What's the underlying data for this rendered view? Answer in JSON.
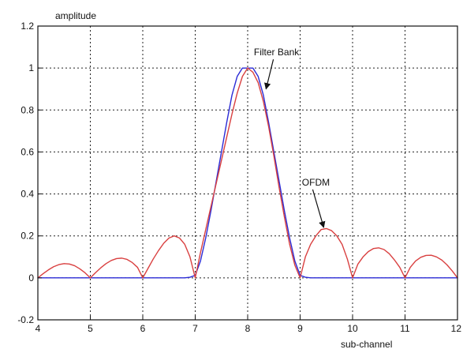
{
  "chart_data": {
    "type": "line",
    "xlabel": "sub-channel",
    "ylabel": "amplitude",
    "xlim": [
      4,
      12
    ],
    "ylim": [
      -0.2,
      1.2
    ],
    "xticks": [
      4,
      5,
      6,
      7,
      8,
      9,
      10,
      11,
      12
    ],
    "yticks": [
      -0.2,
      0,
      0.2,
      0.4,
      0.6,
      0.8,
      1,
      1.2
    ],
    "ytick_labels": [
      "-0.2",
      "0",
      "0.2",
      "0.4",
      "0.6",
      "0.8",
      "1",
      "1.2"
    ],
    "grid": true,
    "series": [
      {
        "name": "Filter Bank",
        "color": "#2b2bd6",
        "points": [
          [
            4.0,
            0.0
          ],
          [
            6.8,
            0.0
          ],
          [
            6.9,
            0.003
          ],
          [
            7.0,
            0.012
          ],
          [
            7.1,
            0.08
          ],
          [
            7.2,
            0.19
          ],
          [
            7.3,
            0.32
          ],
          [
            7.4,
            0.46
          ],
          [
            7.5,
            0.6
          ],
          [
            7.6,
            0.74
          ],
          [
            7.7,
            0.87
          ],
          [
            7.8,
            0.96
          ],
          [
            7.9,
            1.0
          ],
          [
            8.0,
            1.0
          ],
          [
            8.1,
            1.0
          ],
          [
            8.2,
            0.96
          ],
          [
            8.3,
            0.87
          ],
          [
            8.4,
            0.74
          ],
          [
            8.5,
            0.6
          ],
          [
            8.6,
            0.46
          ],
          [
            8.7,
            0.32
          ],
          [
            8.8,
            0.19
          ],
          [
            8.9,
            0.08
          ],
          [
            9.0,
            0.012
          ],
          [
            9.1,
            0.003
          ],
          [
            9.2,
            0.0
          ],
          [
            12.0,
            0.0
          ]
        ]
      },
      {
        "name": "OFDM",
        "color": "#d94040",
        "points": [
          [
            4.0,
            0.0
          ],
          [
            4.1,
            0.02
          ],
          [
            4.2,
            0.038
          ],
          [
            4.3,
            0.053
          ],
          [
            4.4,
            0.063
          ],
          [
            4.5,
            0.068
          ],
          [
            4.6,
            0.066
          ],
          [
            4.7,
            0.058
          ],
          [
            4.8,
            0.043
          ],
          [
            4.9,
            0.024
          ],
          [
            5.0,
            0.0
          ],
          [
            5.1,
            0.025
          ],
          [
            5.2,
            0.048
          ],
          [
            5.3,
            0.068
          ],
          [
            5.4,
            0.083
          ],
          [
            5.5,
            0.092
          ],
          [
            5.6,
            0.094
          ],
          [
            5.7,
            0.088
          ],
          [
            5.8,
            0.073
          ],
          [
            5.9,
            0.05
          ],
          [
            6.0,
            0.0
          ],
          [
            6.1,
            0.045
          ],
          [
            6.2,
            0.09
          ],
          [
            6.3,
            0.13
          ],
          [
            6.4,
            0.165
          ],
          [
            6.5,
            0.19
          ],
          [
            6.6,
            0.2
          ],
          [
            6.7,
            0.19
          ],
          [
            6.8,
            0.16
          ],
          [
            6.9,
            0.1
          ],
          [
            7.0,
            0.0
          ],
          [
            7.1,
            0.12
          ],
          [
            7.2,
            0.23
          ],
          [
            7.3,
            0.34
          ],
          [
            7.4,
            0.45
          ],
          [
            7.5,
            0.56
          ],
          [
            7.6,
            0.67
          ],
          [
            7.7,
            0.78
          ],
          [
            7.8,
            0.88
          ],
          [
            7.9,
            0.96
          ],
          [
            8.0,
            1.0
          ],
          [
            8.1,
            0.98
          ],
          [
            8.2,
            0.93
          ],
          [
            8.3,
            0.84
          ],
          [
            8.4,
            0.72
          ],
          [
            8.5,
            0.58
          ],
          [
            8.6,
            0.43
          ],
          [
            8.7,
            0.29
          ],
          [
            8.8,
            0.16
          ],
          [
            8.9,
            0.06
          ],
          [
            9.0,
            0.0
          ],
          [
            9.1,
            0.1
          ],
          [
            9.2,
            0.16
          ],
          [
            9.3,
            0.2
          ],
          [
            9.4,
            0.23
          ],
          [
            9.5,
            0.235
          ],
          [
            9.6,
            0.225
          ],
          [
            9.7,
            0.2
          ],
          [
            9.8,
            0.16
          ],
          [
            9.9,
            0.09
          ],
          [
            10.0,
            0.0
          ],
          [
            10.1,
            0.065
          ],
          [
            10.2,
            0.1
          ],
          [
            10.3,
            0.125
          ],
          [
            10.4,
            0.14
          ],
          [
            10.5,
            0.143
          ],
          [
            10.6,
            0.135
          ],
          [
            10.7,
            0.115
          ],
          [
            10.8,
            0.085
          ],
          [
            10.9,
            0.05
          ],
          [
            11.0,
            0.0
          ],
          [
            11.1,
            0.05
          ],
          [
            11.2,
            0.08
          ],
          [
            11.3,
            0.098
          ],
          [
            11.4,
            0.107
          ],
          [
            11.5,
            0.108
          ],
          [
            11.6,
            0.1
          ],
          [
            11.7,
            0.085
          ],
          [
            11.8,
            0.062
          ],
          [
            11.9,
            0.033
          ],
          [
            12.0,
            0.0
          ]
        ]
      }
    ],
    "annotations": [
      {
        "text": "Filter Bank",
        "label_x": 8.55,
        "label_y": 1.06,
        "arrow_to": [
          8.35,
          0.9
        ]
      },
      {
        "text": "OFDM",
        "label_x": 9.3,
        "label_y": 0.44,
        "arrow_to": [
          9.45,
          0.24
        ]
      }
    ]
  }
}
